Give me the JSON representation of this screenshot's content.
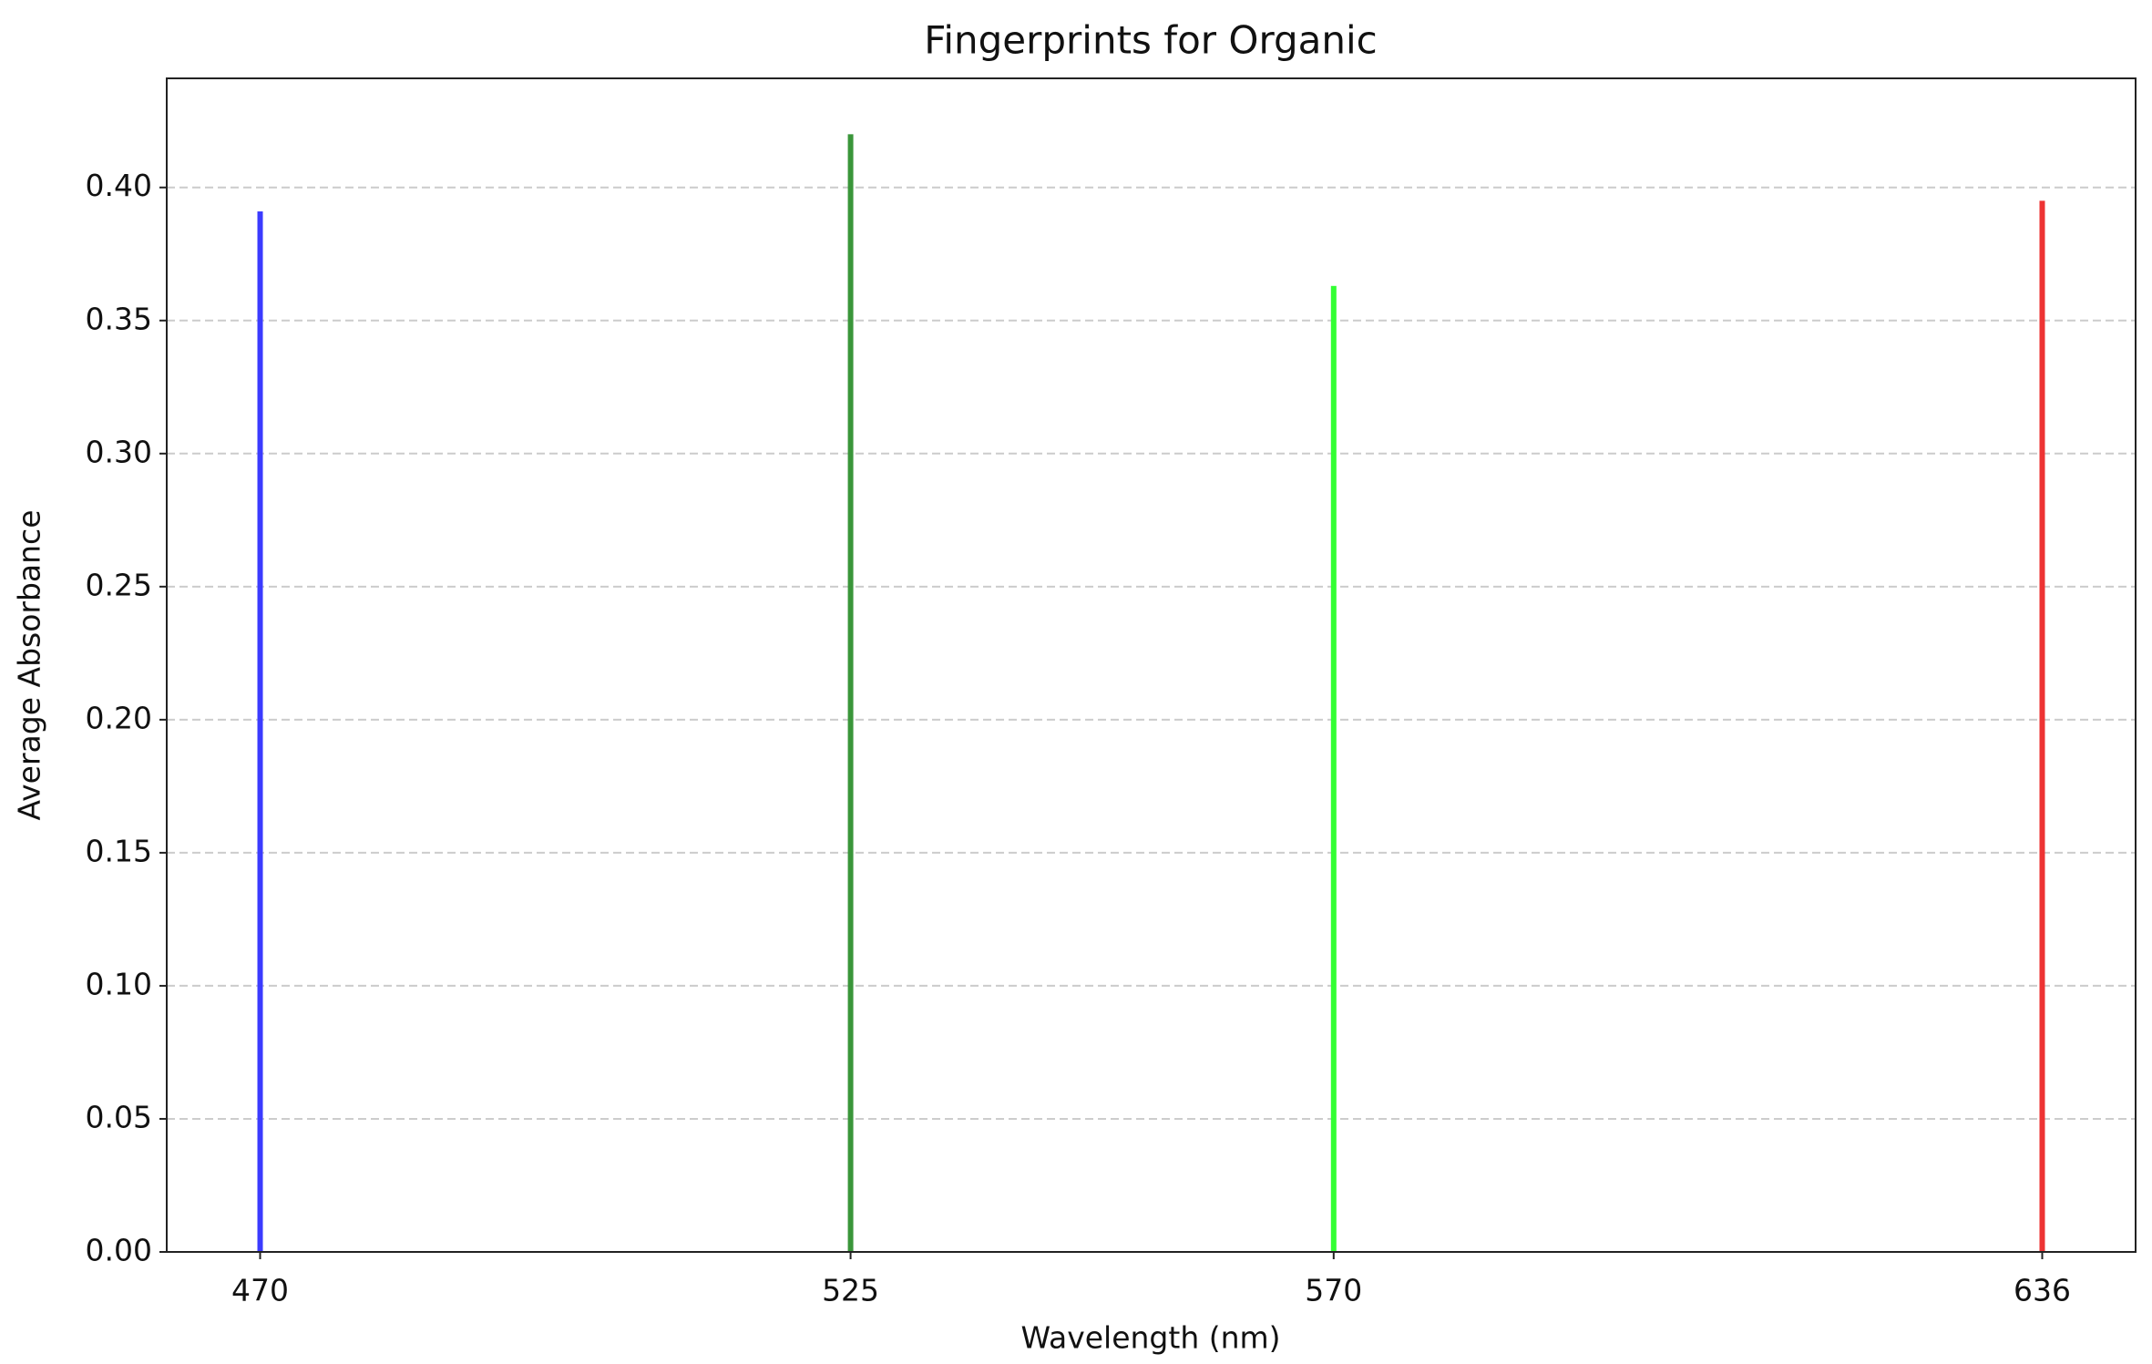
{
  "chart_data": {
    "type": "bar",
    "title": "Fingerprints for Organic",
    "x_label": "Wavelength (nm)",
    "y_label": "Average Absorbance",
    "x": [
      470,
      525,
      570,
      636
    ],
    "values": [
      0.391,
      0.42,
      0.363,
      0.395
    ],
    "colors": [
      "#3b3bff",
      "#3a963a",
      "#33ff33",
      "#ee3333"
    ],
    "xlim": [
      461.3,
      644.7
    ],
    "xticks": [
      470,
      525,
      570,
      636
    ],
    "ylim": [
      0,
      0.441
    ],
    "yticks": [
      {
        "value": 0,
        "label": "0.00"
      },
      {
        "value": 0.05,
        "label": "0.05"
      },
      {
        "value": 0.1,
        "label": "0.10"
      },
      {
        "value": 0.15,
        "label": "0.15"
      },
      {
        "value": 0.2,
        "label": "0.20"
      },
      {
        "value": 0.25,
        "label": "0.25"
      },
      {
        "value": 0.3,
        "label": "0.30"
      },
      {
        "value": 0.35,
        "label": "0.35"
      },
      {
        "value": 0.4,
        "label": "0.40"
      }
    ],
    "grid": "y"
  }
}
